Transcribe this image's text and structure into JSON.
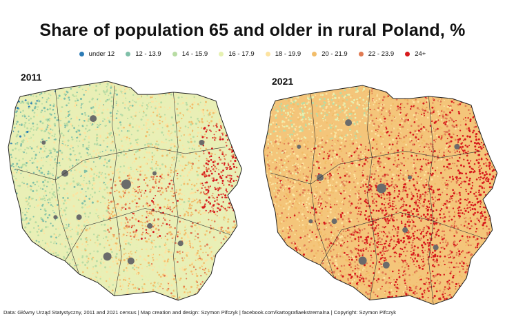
{
  "title": "Share of population 65 and older in rural Poland, %",
  "legend": [
    {
      "label": "under 12",
      "color": "#2c7bb6"
    },
    {
      "label": "12 - 13.9",
      "color": "#7fbfa8"
    },
    {
      "label": "14 - 15.9",
      "color": "#b8dca4"
    },
    {
      "label": "16 - 17.9",
      "color": "#e6f1b2"
    },
    {
      "label": "18 - 19.9",
      "color": "#fde3a0"
    },
    {
      "label": "20 - 21.9",
      "color": "#f2bd6a"
    },
    {
      "label": "22 - 23.9",
      "color": "#e07a52"
    },
    {
      "label": "24+",
      "color": "#d7191c"
    }
  ],
  "maps": [
    {
      "year": "2011",
      "colors": {
        "base": "#e9efb6",
        "urban": "#6b6b6b"
      }
    },
    {
      "year": "2021",
      "colors": {
        "base": "#f4c57a",
        "urban": "#6b6b6b"
      }
    }
  ],
  "footer": "Data: Główny Urząd Statystyczny, 2011 and 2021 census | Map creation and design: Szymon Pifczyk | facebook.com/kartografiaekstremalna | Copyright: Szymon Pifczyk"
}
